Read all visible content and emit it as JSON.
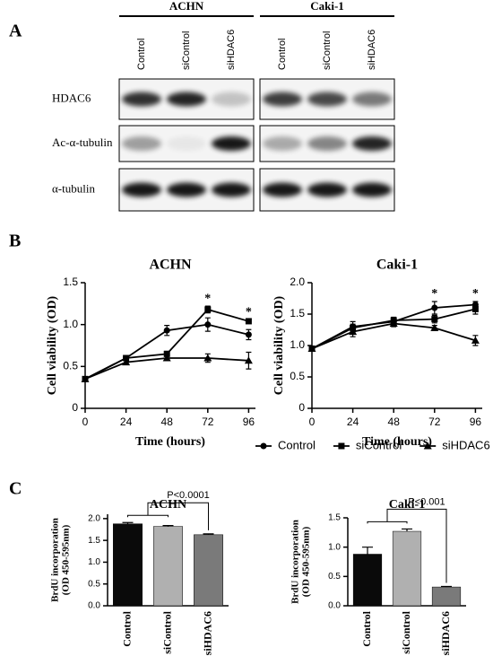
{
  "panels": {
    "a": "A",
    "b": "B",
    "c": "C"
  },
  "blot": {
    "groups": [
      "ACHN",
      "Caki-1"
    ],
    "lanes": [
      "Control",
      "siControl",
      "siHDAC6"
    ],
    "rows": [
      "HDAC6",
      "Ac-α-tubulin",
      "α-tubulin"
    ]
  },
  "chart_data": [
    {
      "type": "line",
      "title": "ACHN",
      "xlabel": "Time (hours)",
      "ylabel": "Cell viability (OD)",
      "x": [
        0,
        24,
        48,
        72,
        96
      ],
      "xlim": [
        0,
        100
      ],
      "xticks": [
        0,
        24,
        48,
        72,
        96
      ],
      "ylim": [
        0,
        1.5
      ],
      "yticks": [
        0,
        0.5,
        {
          "value": 1,
          "label": "1.0"
        },
        1.5
      ],
      "series": [
        {
          "name": "Control",
          "color": "#000000",
          "marker": "circle",
          "values": [
            0.35,
            0.6,
            0.93,
            1.0,
            0.88
          ],
          "errors": [
            0.02,
            0.03,
            0.06,
            0.08,
            0.06
          ]
        },
        {
          "name": "siControl",
          "color": "#000000",
          "marker": "square",
          "values": [
            0.35,
            0.6,
            0.65,
            1.18,
            1.04
          ],
          "errors": [
            0.02,
            0.02,
            0.03,
            0.04,
            0.02
          ]
        },
        {
          "name": "siHDAC6",
          "color": "#000000",
          "marker": "triangle",
          "values": [
            0.35,
            0.55,
            0.6,
            0.6,
            0.57
          ],
          "errors": [
            0.02,
            0.02,
            0.03,
            0.05,
            0.1
          ]
        }
      ],
      "annotations": [
        {
          "text": "*",
          "x": 72
        },
        {
          "text": "*",
          "x": 96
        }
      ]
    },
    {
      "type": "line",
      "title": "Caki-1",
      "xlabel": "Time (hours)",
      "ylabel": "Cell viability (OD)",
      "x": [
        0,
        24,
        48,
        72,
        96
      ],
      "xlim": [
        0,
        100
      ],
      "xticks": [
        0,
        24,
        48,
        72,
        96
      ],
      "ylim": [
        0,
        2
      ],
      "yticks": [
        0,
        0.5,
        {
          "value": 1,
          "label": "1.0"
        },
        1.5,
        {
          "value": 2,
          "label": "2.0"
        }
      ],
      "series": [
        {
          "color": "#000000",
          "marker": "circle",
          "values": [
            0.95,
            1.3,
            1.38,
            1.6,
            1.65
          ],
          "errors": [
            0.02,
            0.08,
            0.05,
            0.1,
            0.05
          ]
        },
        {
          "color": "#000000",
          "marker": "square",
          "values": [
            0.95,
            1.28,
            1.4,
            1.42,
            1.58
          ],
          "errors": [
            0.02,
            0.06,
            0.05,
            0.06,
            0.08
          ]
        },
        {
          "color": "#000000",
          "marker": "triangle",
          "values": [
            0.95,
            1.22,
            1.35,
            1.28,
            1.08
          ],
          "errors": [
            0.02,
            0.08,
            0.05,
            0.04,
            0.08
          ]
        }
      ],
      "annotations": [
        {
          "text": "*",
          "x": 72
        },
        {
          "text": "*",
          "x": 96
        }
      ]
    },
    {
      "type": "bar",
      "title": "ACHN",
      "ylabel": [
        "BrdU incorporation",
        "(OD 450-595nm)"
      ],
      "categories": [
        "Control",
        "siControl",
        "siHDAC6"
      ],
      "values": [
        1.88,
        1.82,
        1.63
      ],
      "errors": [
        0.03,
        0.02,
        0.02
      ],
      "colors": [
        "#0a0a0a",
        "#b0b0b0",
        "#7a7a7a"
      ],
      "ylim": [
        0,
        2.1
      ],
      "yticks": [
        {
          "value": 0,
          "label": "0.0"
        },
        0.5,
        {
          "value": 1,
          "label": "1.0"
        },
        1.5,
        {
          "value": 2,
          "label": "2.0"
        }
      ],
      "comparison": "P<0.0001"
    },
    {
      "type": "bar",
      "title": "Caki-1",
      "ylabel": [
        "BrdU incorporation",
        "(OD 450-595nm)"
      ],
      "categories": [
        "Control",
        "siControl",
        "siHDAC6"
      ],
      "values": [
        0.88,
        1.27,
        0.32
      ],
      "errors": [
        0.12,
        0.04,
        0.01
      ],
      "colors": [
        "#0a0a0a",
        "#b0b0b0",
        "#7a7a7a"
      ],
      "ylim": [
        0,
        1.5
      ],
      "yticks": [
        {
          "value": 0,
          "label": "0.0"
        },
        0.5,
        {
          "value": 1,
          "label": "1.0"
        },
        1.5
      ],
      "comparison": "P<0.001"
    }
  ]
}
